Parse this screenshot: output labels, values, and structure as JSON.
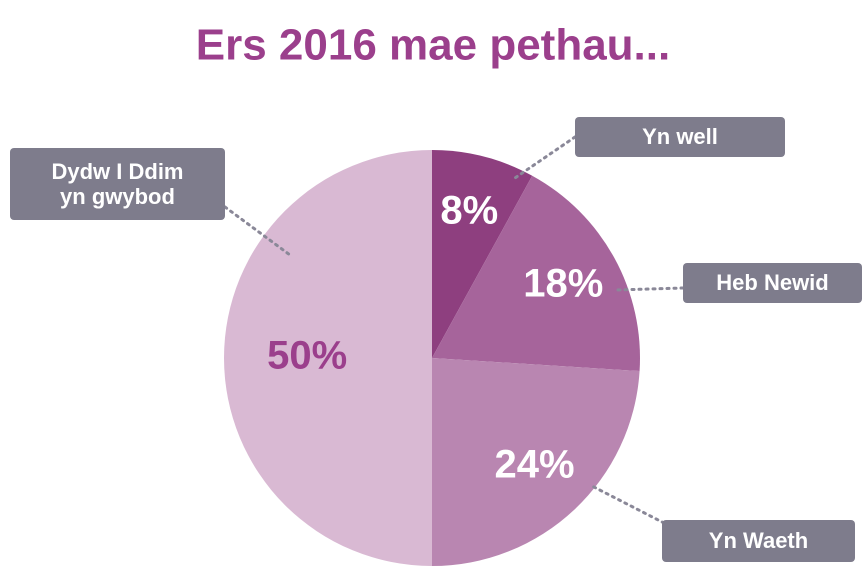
{
  "chart_data": {
    "type": "pie",
    "title": "Ers 2016 mae pethau...",
    "categories": [
      "Yn well",
      "Heb Newid",
      "Yn Waeth",
      "Dydw I Ddim yn gwybod"
    ],
    "values": [
      8,
      18,
      24,
      50
    ],
    "value_labels": [
      "8%",
      "18%",
      "24%",
      "50%"
    ],
    "colors": [
      "#8e3f7f",
      "#a6649b",
      "#b986b1",
      "#d9b9d3"
    ]
  }
}
